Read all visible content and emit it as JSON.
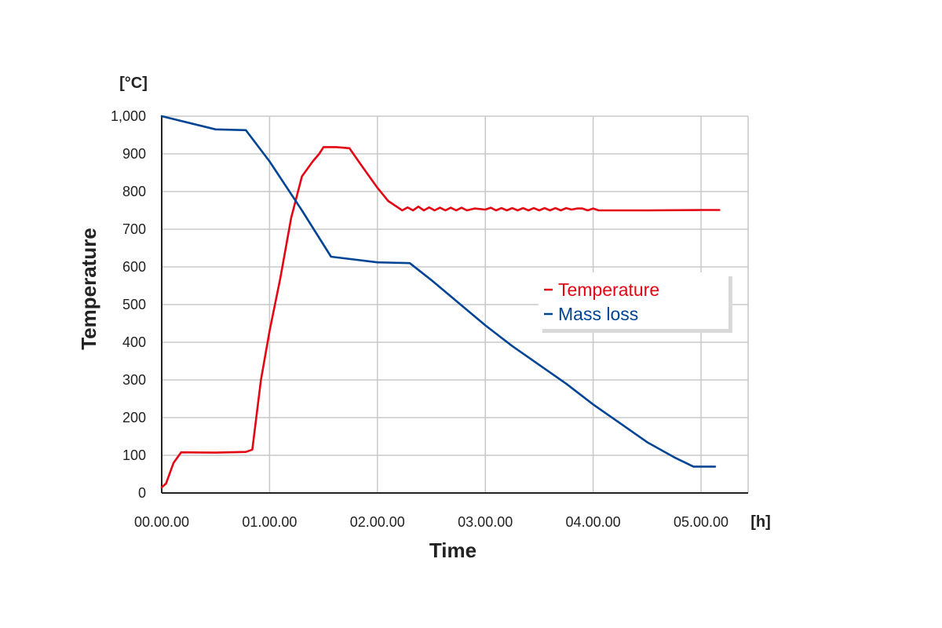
{
  "chart_data": {
    "type": "line",
    "title": "",
    "xlabel": "Time",
    "ylabel": "Temperature",
    "x_unit": "[h]",
    "y_unit": "[°C]",
    "xlim": [
      0,
      5.45
    ],
    "ylim": [
      0,
      1000
    ],
    "grid": true,
    "legend_position": "center-right",
    "x_tick_values": [
      0,
      1,
      2,
      3,
      4,
      5
    ],
    "x_tick_labels": [
      "00.00.00",
      "01.00.00",
      "02.00.00",
      "03.00.00",
      "04.00.00",
      "05.00.00"
    ],
    "y_tick_values": [
      0,
      100,
      200,
      300,
      400,
      500,
      600,
      700,
      800,
      900,
      1000
    ],
    "y_tick_labels": [
      "0",
      "100",
      "200",
      "300",
      "400",
      "500",
      "600",
      "700",
      "800",
      "900",
      "1,000"
    ],
    "series": [
      {
        "name": "Temperature",
        "color": "#e30613",
        "x": [
          0.0,
          0.04,
          0.11,
          0.18,
          0.5,
          0.78,
          0.84,
          0.92,
          1.0,
          1.1,
          1.2,
          1.3,
          1.4,
          1.46,
          1.5,
          1.62,
          1.74,
          1.85,
          2.0,
          2.1,
          2.23,
          2.28,
          2.33,
          2.38,
          2.43,
          2.48,
          2.53,
          2.58,
          2.63,
          2.68,
          2.73,
          2.78,
          2.83,
          2.9,
          3.0,
          3.05,
          3.1,
          3.15,
          3.2,
          3.25,
          3.3,
          3.35,
          3.4,
          3.45,
          3.5,
          3.55,
          3.6,
          3.65,
          3.7,
          3.75,
          3.8,
          3.85,
          3.9,
          3.95,
          4.0,
          4.05,
          4.1,
          4.5,
          5.0,
          5.17
        ],
        "y": [
          15,
          25,
          80,
          108,
          107,
          109,
          115,
          300,
          430,
          570,
          730,
          840,
          880,
          900,
          918,
          918,
          915,
          870,
          810,
          775,
          750,
          758,
          750,
          760,
          750,
          758,
          750,
          757,
          750,
          757,
          750,
          757,
          750,
          755,
          752,
          757,
          750,
          756,
          750,
          756,
          750,
          756,
          750,
          756,
          750,
          756,
          750,
          756,
          750,
          756,
          752,
          755,
          755,
          750,
          755,
          750,
          750,
          750,
          751,
          751
        ]
      },
      {
        "name": "Mass loss",
        "color": "#004494",
        "x": [
          0.0,
          0.5,
          0.78,
          1.0,
          1.3,
          1.57,
          2.0,
          2.3,
          2.5,
          2.75,
          3.0,
          3.25,
          3.5,
          3.75,
          4.0,
          4.25,
          4.5,
          4.75,
          4.93,
          5.13
        ],
        "y": [
          1000,
          965,
          963,
          880,
          750,
          627,
          612,
          610,
          565,
          505,
          445,
          390,
          340,
          290,
          235,
          185,
          135,
          95,
          70,
          70
        ]
      }
    ]
  }
}
